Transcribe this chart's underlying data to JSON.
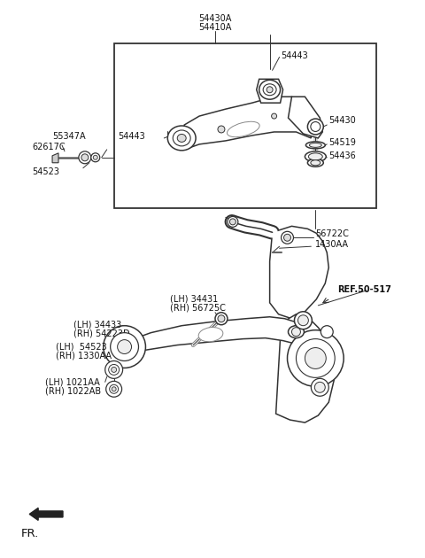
{
  "bg_color": "#ffffff",
  "fig_width": 4.8,
  "fig_height": 6.3,
  "dpi": 100,
  "line_color": "#333333",
  "label_color": "#111111",
  "font_size": 7.0,
  "labels": {
    "top_1": "54430A",
    "top_2": "54410A",
    "box_upper_54443": "54443",
    "box_left_54443": "54443",
    "box_right_54430": "54430",
    "box_54519": "54519",
    "box_54436": "54436",
    "left_55347A": "55347A",
    "left_62617C": "62617C",
    "left_54523": "54523",
    "lower_56722C": "56722C",
    "lower_1430AA": "1430AA",
    "lower_lh1a": "(LH) 34431",
    "lower_lh1b": "(RH) 56725C",
    "lower_lh2a": "(LH) 34433",
    "lower_lh2b": "(RH) 54223D",
    "lower_lh3a": "(LH)  54523",
    "lower_lh3b": "(RH) 1330AA",
    "lower_lh4a": "(LH) 1021AA",
    "lower_lh4b": "(RH) 1022AB",
    "ref": "REF.50-517",
    "fr": "FR."
  }
}
